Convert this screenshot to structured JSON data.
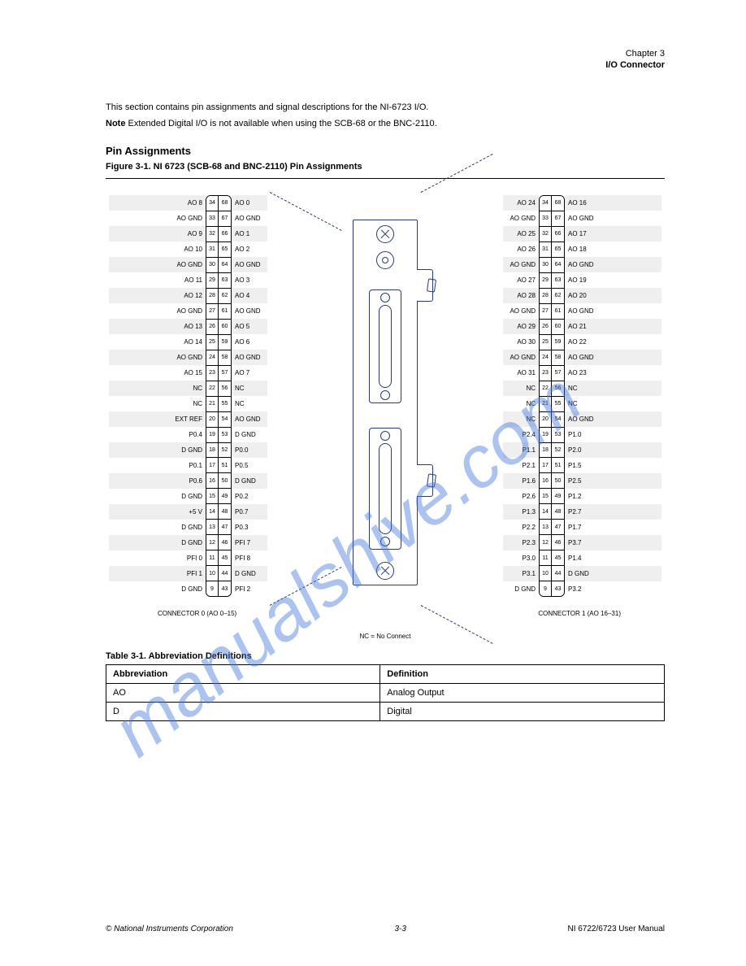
{
  "header": {
    "chapter": "Chapter 3",
    "section": "I/O Connector"
  },
  "intro": "This section contains pin assignments and signal descriptions for the NI-6723 I/O.",
  "note": {
    "label": "Note",
    "text": " Extended Digital I/O is not available when using the SCB-68 or the BNC-2110."
  },
  "sections": {
    "pin_assignments": "Pin Assignments",
    "figure_title": "Figure 3-1. NI 6723 (SCB-68 and BNC-2110) Pin Assignments",
    "abbr_title": "Table 3-1. Abbreviation Definitions"
  },
  "pins_left": [
    {
      "l": "AO 8",
      "a": "34",
      "b": "68",
      "r": "AO 0"
    },
    {
      "l": "AO GND",
      "a": "33",
      "b": "67",
      "r": "AO GND"
    },
    {
      "l": "AO 9",
      "a": "32",
      "b": "66",
      "r": "AO 1"
    },
    {
      "l": "AO 10",
      "a": "31",
      "b": "65",
      "r": "AO 2"
    },
    {
      "l": "AO GND",
      "a": "30",
      "b": "64",
      "r": "AO GND"
    },
    {
      "l": "AO 11",
      "a": "29",
      "b": "63",
      "r": "AO 3"
    },
    {
      "l": "AO 12",
      "a": "28",
      "b": "62",
      "r": "AO 4"
    },
    {
      "l": "AO GND",
      "a": "27",
      "b": "61",
      "r": "AO GND"
    },
    {
      "l": "AO 13",
      "a": "26",
      "b": "60",
      "r": "AO 5"
    },
    {
      "l": "AO 14",
      "a": "25",
      "b": "59",
      "r": "AO 6"
    },
    {
      "l": "AO GND",
      "a": "24",
      "b": "58",
      "r": "AO GND"
    },
    {
      "l": "AO 15",
      "a": "23",
      "b": "57",
      "r": "AO 7"
    },
    {
      "l": "NC",
      "a": "22",
      "b": "56",
      "r": "NC"
    },
    {
      "l": "NC",
      "a": "21",
      "b": "55",
      "r": "NC"
    },
    {
      "l": "EXT REF",
      "a": "20",
      "b": "54",
      "r": "AO GND"
    },
    {
      "l": "P0.4",
      "a": "19",
      "b": "53",
      "r": "D GND"
    },
    {
      "l": "D GND",
      "a": "18",
      "b": "52",
      "r": "P0.0"
    },
    {
      "l": "P0.1",
      "a": "17",
      "b": "51",
      "r": "P0.5"
    },
    {
      "l": "P0.6",
      "a": "16",
      "b": "50",
      "r": "D GND"
    },
    {
      "l": "D GND",
      "a": "15",
      "b": "49",
      "r": "P0.2"
    },
    {
      "l": "+5 V",
      "a": "14",
      "b": "48",
      "r": "P0.7"
    },
    {
      "l": "D GND",
      "a": "13",
      "b": "47",
      "r": "P0.3"
    },
    {
      "l": "D GND",
      "a": "12",
      "b": "46",
      "r": "PFI 7"
    },
    {
      "l": "PFI 0",
      "a": "11",
      "b": "45",
      "r": "PFI 8"
    },
    {
      "l": "PFI 1",
      "a": "10",
      "b": "44",
      "r": "D GND"
    },
    {
      "l": "D GND",
      "a": "9",
      "b": "43",
      "r": "PFI 2"
    }
  ],
  "pins_right": [
    {
      "l": "AO 24",
      "a": "34",
      "b": "68",
      "r": "AO 16"
    },
    {
      "l": "AO GND",
      "a": "33",
      "b": "67",
      "r": "AO GND"
    },
    {
      "l": "AO 25",
      "a": "32",
      "b": "66",
      "r": "AO 17"
    },
    {
      "l": "AO 26",
      "a": "31",
      "b": "65",
      "r": "AO 18"
    },
    {
      "l": "AO GND",
      "a": "30",
      "b": "64",
      "r": "AO GND"
    },
    {
      "l": "AO 27",
      "a": "29",
      "b": "63",
      "r": "AO 19"
    },
    {
      "l": "AO 28",
      "a": "28",
      "b": "62",
      "r": "AO 20"
    },
    {
      "l": "AO GND",
      "a": "27",
      "b": "61",
      "r": "AO GND"
    },
    {
      "l": "AO 29",
      "a": "26",
      "b": "60",
      "r": "AO 21"
    },
    {
      "l": "AO 30",
      "a": "25",
      "b": "59",
      "r": "AO 22"
    },
    {
      "l": "AO GND",
      "a": "24",
      "b": "58",
      "r": "AO GND"
    },
    {
      "l": "AO 31",
      "a": "23",
      "b": "57",
      "r": "AO 23"
    },
    {
      "l": "NC",
      "a": "22",
      "b": "56",
      "r": "NC"
    },
    {
      "l": "NC",
      "a": "21",
      "b": "55",
      "r": "NC"
    },
    {
      "l": "NC",
      "a": "20",
      "b": "54",
      "r": "AO GND"
    },
    {
      "l": "P2.4",
      "a": "19",
      "b": "53",
      "r": "P1.0"
    },
    {
      "l": "P1.1",
      "a": "18",
      "b": "52",
      "r": "P2.0"
    },
    {
      "l": "P2.1",
      "a": "17",
      "b": "51",
      "r": "P1.5"
    },
    {
      "l": "P1.6",
      "a": "16",
      "b": "50",
      "r": "P2.5"
    },
    {
      "l": "P2.6",
      "a": "15",
      "b": "49",
      "r": "P1.2"
    },
    {
      "l": "P1.3",
      "a": "14",
      "b": "48",
      "r": "P2.7"
    },
    {
      "l": "P2.2",
      "a": "13",
      "b": "47",
      "r": "P1.7"
    },
    {
      "l": "P2.3",
      "a": "12",
      "b": "46",
      "r": "P3.7"
    },
    {
      "l": "P3.0",
      "a": "11",
      "b": "45",
      "r": "P1.4"
    },
    {
      "l": "P3.1",
      "a": "10",
      "b": "44",
      "r": "D GND"
    },
    {
      "l": "D GND",
      "a": "9",
      "b": "43",
      "r": "P3.2"
    }
  ],
  "connector_labels": {
    "left": "CONNECTOR 0 (AO 0–15)",
    "right": "CONNECTOR 1 (AO 16–31)"
  },
  "post_caption": "NC = No Connect",
  "abbr": {
    "headers": [
      "Abbreviation",
      "Definition"
    ],
    "rows": [
      [
        "AO",
        "Analog Output"
      ],
      [
        "D",
        "Digital"
      ]
    ]
  },
  "footer": {
    "left": "© National Instruments Corporation",
    "center": "3-3",
    "right": "NI 6722/6723 User Manual"
  },
  "watermark": "manualshive.com",
  "colors": {
    "stroke": "#2a3a6a",
    "stripe": "#efefef",
    "wm": "rgba(70,120,220,0.45)"
  }
}
